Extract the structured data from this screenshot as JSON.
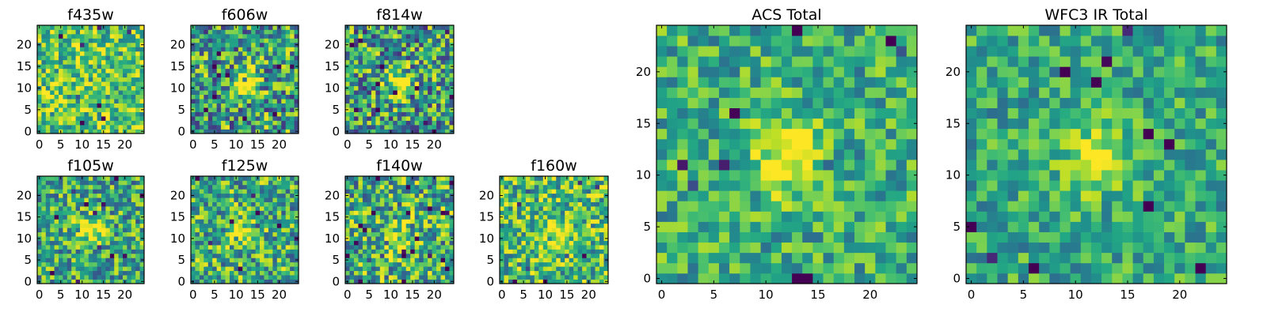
{
  "chart_data": [
    {
      "type": "heatmap",
      "title": "f435w",
      "xticks": [
        "0",
        "5",
        "10",
        "15",
        "20"
      ],
      "yticks": [
        "0",
        "5",
        "10",
        "15",
        "20"
      ],
      "xlim": [
        -0.5,
        24.5
      ],
      "ylim": [
        -0.5,
        24.5
      ],
      "colormap": "viridis",
      "pixel_grid": [
        25,
        25
      ],
      "bright_center": null,
      "bright_amplitude": 0.0,
      "noise_amplitude": 0.32,
      "baseline": 0.72,
      "seed": 11
    },
    {
      "type": "heatmap",
      "title": "f606w",
      "xticks": [
        "0",
        "5",
        "10",
        "15",
        "20"
      ],
      "yticks": [
        "0",
        "5",
        "10",
        "15",
        "20"
      ],
      "xlim": [
        -0.5,
        24.5
      ],
      "ylim": [
        -0.5,
        24.5
      ],
      "colormap": "viridis",
      "pixel_grid": [
        25,
        25
      ],
      "bright_center": [
        12,
        11
      ],
      "bright_amplitude": 0.55,
      "noise_amplitude": 0.42,
      "baseline": 0.56,
      "seed": 23
    },
    {
      "type": "heatmap",
      "title": "f814w",
      "xticks": [
        "0",
        "5",
        "10",
        "15",
        "20"
      ],
      "yticks": [
        "0",
        "5",
        "10",
        "15",
        "20"
      ],
      "xlim": [
        -0.5,
        24.5
      ],
      "ylim": [
        -0.5,
        24.5
      ],
      "colormap": "viridis",
      "pixel_grid": [
        25,
        25
      ],
      "bright_center": [
        12,
        11
      ],
      "bright_amplitude": 0.55,
      "noise_amplitude": 0.42,
      "baseline": 0.55,
      "seed": 37
    },
    {
      "type": "heatmap",
      "title": "f105w",
      "xticks": [
        "0",
        "5",
        "10",
        "15",
        "20"
      ],
      "yticks": [
        "0",
        "5",
        "10",
        "15",
        "20"
      ],
      "xlim": [
        -0.5,
        24.5
      ],
      "ylim": [
        -0.5,
        24.5
      ],
      "colormap": "viridis",
      "pixel_grid": [
        25,
        25
      ],
      "bright_center": [
        12,
        12
      ],
      "bright_amplitude": 0.45,
      "noise_amplitude": 0.34,
      "baseline": 0.6,
      "seed": 41
    },
    {
      "type": "heatmap",
      "title": "f125w",
      "xticks": [
        "0",
        "5",
        "10",
        "15",
        "20"
      ],
      "yticks": [
        "0",
        "5",
        "10",
        "15",
        "20"
      ],
      "xlim": [
        -0.5,
        24.5
      ],
      "ylim": [
        -0.5,
        24.5
      ],
      "colormap": "viridis",
      "pixel_grid": [
        25,
        25
      ],
      "bright_center": [
        12,
        11
      ],
      "bright_amplitude": 0.4,
      "noise_amplitude": 0.36,
      "baseline": 0.62,
      "seed": 53
    },
    {
      "type": "heatmap",
      "title": "f140w",
      "xticks": [
        "0",
        "5",
        "10",
        "15",
        "20"
      ],
      "yticks": [
        "0",
        "5",
        "10",
        "15",
        "20"
      ],
      "xlim": [
        -0.5,
        24.5
      ],
      "ylim": [
        -0.5,
        24.5
      ],
      "colormap": "viridis",
      "pixel_grid": [
        25,
        25
      ],
      "bright_center": [
        11,
        10
      ],
      "bright_amplitude": 0.4,
      "noise_amplitude": 0.38,
      "baseline": 0.62,
      "seed": 67
    },
    {
      "type": "heatmap",
      "title": "f160w",
      "xticks": [
        "0",
        "5",
        "10",
        "15",
        "20"
      ],
      "yticks": [
        "0",
        "5",
        "10",
        "15",
        "20"
      ],
      "xlim": [
        -0.5,
        24.5
      ],
      "ylim": [
        -0.5,
        24.5
      ],
      "colormap": "viridis",
      "pixel_grid": [
        25,
        25
      ],
      "bright_center": [
        12,
        11
      ],
      "bright_amplitude": 0.35,
      "noise_amplitude": 0.34,
      "baseline": 0.68,
      "seed": 79
    },
    {
      "type": "heatmap",
      "title": "ACS Total",
      "xticks": [
        "0",
        "5",
        "10",
        "15",
        "20"
      ],
      "yticks": [
        "0",
        "5",
        "10",
        "15",
        "20"
      ],
      "xlim": [
        -0.5,
        24.5
      ],
      "ylim": [
        -0.5,
        24.5
      ],
      "colormap": "viridis",
      "pixel_grid": [
        25,
        25
      ],
      "bright_center": [
        12,
        11.5
      ],
      "bright_amplitude": 0.5,
      "noise_amplitude": 0.26,
      "baseline": 0.62,
      "seed": 97
    },
    {
      "type": "heatmap",
      "title": "WFC3 IR Total",
      "xticks": [
        "0",
        "5",
        "10",
        "15",
        "20"
      ],
      "yticks": [
        "0",
        "5",
        "10",
        "15",
        "20"
      ],
      "xlim": [
        -0.5,
        24.5
      ],
      "ylim": [
        -0.5,
        24.5
      ],
      "colormap": "viridis",
      "pixel_grid": [
        25,
        25
      ],
      "bright_center": [
        12,
        11.5
      ],
      "bright_amplitude": 0.45,
      "noise_amplitude": 0.24,
      "baseline": 0.6,
      "seed": 113
    }
  ]
}
